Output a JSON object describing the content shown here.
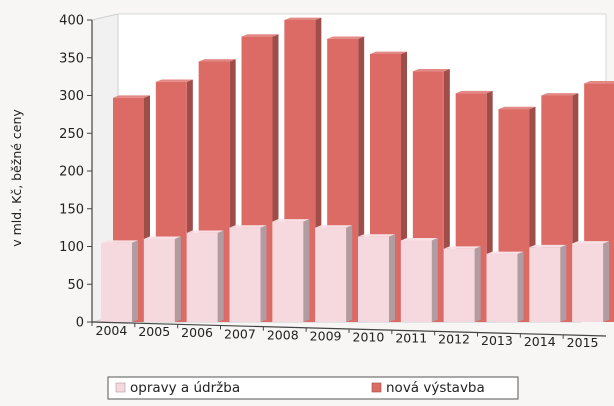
{
  "chart_data": {
    "type": "bar",
    "title": "",
    "ylabel": "v mld. Kč, běžné ceny",
    "xlabel": "",
    "ylim": [
      0,
      400
    ],
    "yticks": [
      0,
      50,
      100,
      150,
      200,
      250,
      300,
      350,
      400
    ],
    "categories": [
      "2004",
      "2005",
      "2006",
      "2007",
      "2008",
      "2009",
      "2010",
      "2011",
      "2012",
      "2013",
      "2014",
      "2015"
    ],
    "series": [
      {
        "name": "opravy a údržba",
        "values": [
          105,
          110,
          118,
          125,
          133,
          125,
          113,
          108,
          97,
          90,
          99,
          104
        ],
        "color": "#f6d9df"
      },
      {
        "name": "nová výstavba",
        "values": [
          297,
          318,
          345,
          378,
          400,
          375,
          355,
          332,
          303,
          282,
          300,
          316
        ],
        "color": "#dc6b66"
      }
    ],
    "stacked": false,
    "style": "3d-overlapping",
    "grid": false,
    "legend_position": "bottom"
  }
}
